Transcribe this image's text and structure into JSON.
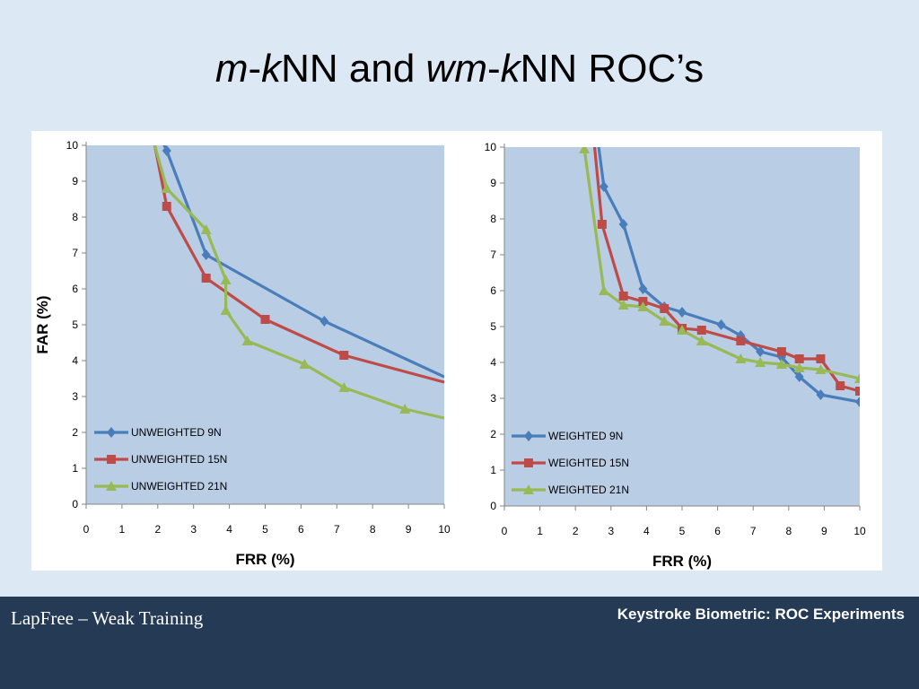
{
  "slide": {
    "title_parts": [
      "m",
      "-",
      "k",
      "NN and ",
      "wm",
      "-",
      "k",
      "NN ROC’s"
    ],
    "footer_left": "LapFree – Weak Training",
    "footer_right": "Keystroke Biometric: ROC Experiments"
  },
  "colors": {
    "blue": "#4a7ebb",
    "red": "#be4b48",
    "green": "#98b954",
    "plot_bg": "#b9cde5"
  },
  "chart_data": [
    {
      "type": "line",
      "title": "",
      "xlabel": "FRR (%)",
      "ylabel": "FAR (%)",
      "xlim": [
        0,
        10
      ],
      "ylim": [
        0,
        10
      ],
      "xticks": [
        0,
        1,
        2,
        3,
        4,
        5,
        6,
        7,
        8,
        9,
        10
      ],
      "yticks": [
        0,
        1,
        2,
        3,
        4,
        5,
        6,
        7,
        8,
        9,
        10
      ],
      "legend_position": "bottom-left",
      "series": [
        {
          "name": "UNWEIGHTED  9N",
          "color": "#4a7ebb",
          "marker": "diamond",
          "points": [
            [
              1.9,
              10.6
            ],
            [
              2.25,
              9.85
            ],
            [
              3.35,
              6.95
            ],
            [
              6.65,
              5.1
            ],
            [
              10,
              3.55
            ]
          ],
          "marked": [
            1,
            2,
            3
          ]
        },
        {
          "name": "UNWEIGHTED  15N",
          "color": "#be4b48",
          "marker": "square",
          "points": [
            [
              1.8,
              10.6
            ],
            [
              2.25,
              8.3
            ],
            [
              3.35,
              6.3
            ],
            [
              5.0,
              5.15
            ],
            [
              7.2,
              4.15
            ],
            [
              10,
              3.4
            ]
          ],
          "marked": [
            1,
            2,
            3,
            4
          ]
        },
        {
          "name": "UNWEIGHTED  21N",
          "color": "#98b954",
          "marker": "triangle",
          "points": [
            [
              1.75,
              10.6
            ],
            [
              2.25,
              8.8
            ],
            [
              3.35,
              7.65
            ],
            [
              3.9,
              6.25
            ],
            [
              3.9,
              5.4
            ],
            [
              4.5,
              4.55
            ],
            [
              6.1,
              3.9
            ],
            [
              7.2,
              3.25
            ],
            [
              8.9,
              2.65
            ],
            [
              10,
              2.4
            ]
          ],
          "marked": [
            1,
            2,
            3,
            4,
            5,
            6,
            7,
            8
          ]
        }
      ]
    },
    {
      "type": "line",
      "title": "",
      "xlabel": "FRR (%)",
      "ylabel": "",
      "xlim": [
        0,
        10
      ],
      "ylim": [
        0,
        10
      ],
      "xticks": [
        0,
        1,
        2,
        3,
        4,
        5,
        6,
        7,
        8,
        9,
        10
      ],
      "yticks": [
        0,
        1,
        2,
        3,
        4,
        5,
        6,
        7,
        8,
        9,
        10
      ],
      "legend_position": "bottom-left",
      "series": [
        {
          "name": "WEIGHTED  9N",
          "color": "#4a7ebb",
          "marker": "diamond",
          "points": [
            [
              2.6,
              10.4
            ],
            [
              2.8,
              8.9
            ],
            [
              3.35,
              7.85
            ],
            [
              3.9,
              6.05
            ],
            [
              4.5,
              5.55
            ],
            [
              5.0,
              5.4
            ],
            [
              6.1,
              5.05
            ],
            [
              6.65,
              4.75
            ],
            [
              7.2,
              4.3
            ],
            [
              7.8,
              4.15
            ],
            [
              8.3,
              3.6
            ],
            [
              8.9,
              3.1
            ],
            [
              10,
              2.9
            ]
          ],
          "marked": [
            1,
            2,
            3,
            4,
            5,
            6,
            7,
            8,
            9,
            10,
            11,
            12
          ]
        },
        {
          "name": "WEIGHTED  15N",
          "color": "#be4b48",
          "marker": "square",
          "points": [
            [
              2.5,
              10.4
            ],
            [
              2.75,
              7.85
            ],
            [
              3.35,
              5.85
            ],
            [
              3.9,
              5.7
            ],
            [
              4.5,
              5.5
            ],
            [
              5.0,
              4.95
            ],
            [
              5.55,
              4.9
            ],
            [
              6.65,
              4.6
            ],
            [
              7.8,
              4.3
            ],
            [
              8.3,
              4.1
            ],
            [
              8.9,
              4.1
            ],
            [
              9.45,
              3.35
            ],
            [
              10,
              3.2
            ]
          ],
          "marked": [
            1,
            2,
            3,
            4,
            5,
            6,
            7,
            8,
            9,
            10,
            11,
            12
          ]
        },
        {
          "name": "WEIGHTED  21N",
          "color": "#98b954",
          "marker": "triangle",
          "points": [
            [
              2.25,
              9.95
            ],
            [
              2.8,
              6.0
            ],
            [
              3.35,
              5.6
            ],
            [
              3.9,
              5.55
            ],
            [
              4.5,
              5.15
            ],
            [
              5.0,
              4.9
            ],
            [
              5.55,
              4.6
            ],
            [
              6.65,
              4.1
            ],
            [
              7.2,
              4.0
            ],
            [
              7.8,
              3.95
            ],
            [
              8.3,
              3.85
            ],
            [
              8.9,
              3.8
            ],
            [
              10,
              3.55
            ]
          ],
          "marked": [
            0,
            1,
            2,
            3,
            4,
            5,
            6,
            7,
            8,
            9,
            10,
            11,
            12
          ]
        }
      ]
    }
  ]
}
